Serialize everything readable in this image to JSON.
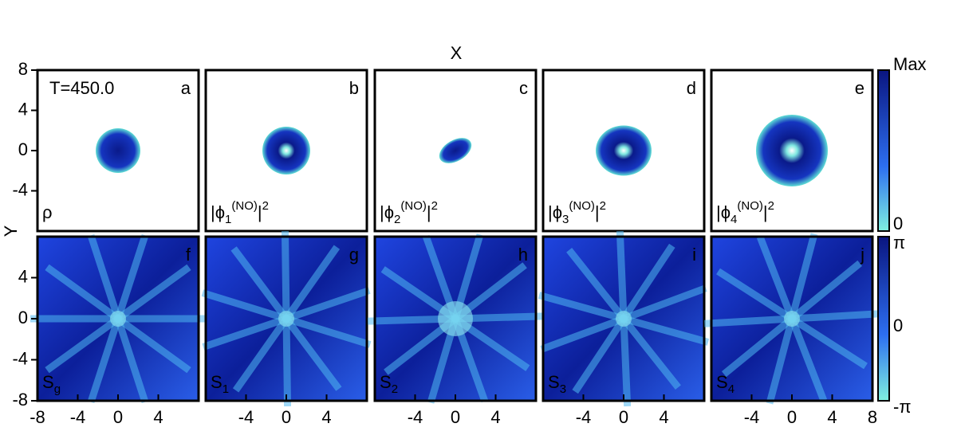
{
  "title": "X",
  "y_label": "Y",
  "time_label": "T=450.0",
  "xlim": [
    -8,
    8
  ],
  "ylim": [
    -8,
    8
  ],
  "top_row": {
    "yticks": [
      8,
      4,
      0,
      -4
    ],
    "panels": [
      {
        "letter": "a",
        "label": {
          "base": "ρ"
        }
      },
      {
        "letter": "b",
        "label": {
          "base": "|ϕ",
          "sub": "1",
          "sup": "(NO)",
          "end": "|",
          "pow": "2"
        }
      },
      {
        "letter": "c",
        "label": {
          "base": "|ϕ",
          "sub": "2",
          "sup": "(NO)",
          "end": "|",
          "pow": "2"
        }
      },
      {
        "letter": "d",
        "label": {
          "base": "|ϕ",
          "sub": "3",
          "sup": "(NO)",
          "end": "|",
          "pow": "2"
        }
      },
      {
        "letter": "e",
        "label": {
          "base": "|ϕ",
          "sub": "4",
          "sup": "(NO)",
          "end": "|",
          "pow": "2"
        }
      }
    ]
  },
  "bottom_row": {
    "yticks": [
      4,
      0,
      -4,
      -8
    ],
    "panels": [
      {
        "letter": "f",
        "label": {
          "base": "S",
          "sub": "g"
        },
        "xticks": [
          -8,
          -4,
          0,
          4
        ]
      },
      {
        "letter": "g",
        "label": {
          "base": "S",
          "sub": "1"
        },
        "xticks": [
          -4,
          0,
          4
        ]
      },
      {
        "letter": "h",
        "label": {
          "base": "S",
          "sub": "2"
        },
        "xticks": [
          -4,
          0,
          4
        ]
      },
      {
        "letter": "i",
        "label": {
          "base": "S",
          "sub": "3"
        },
        "xticks": [
          -4,
          0,
          4
        ]
      },
      {
        "letter": "j",
        "label": {
          "base": "S",
          "sub": "4"
        },
        "xticks": [
          -4,
          0,
          4,
          8
        ]
      }
    ]
  },
  "colorbars": {
    "top": [
      "Max",
      "0"
    ],
    "bottom": [
      "π",
      "0",
      "-π"
    ]
  }
}
